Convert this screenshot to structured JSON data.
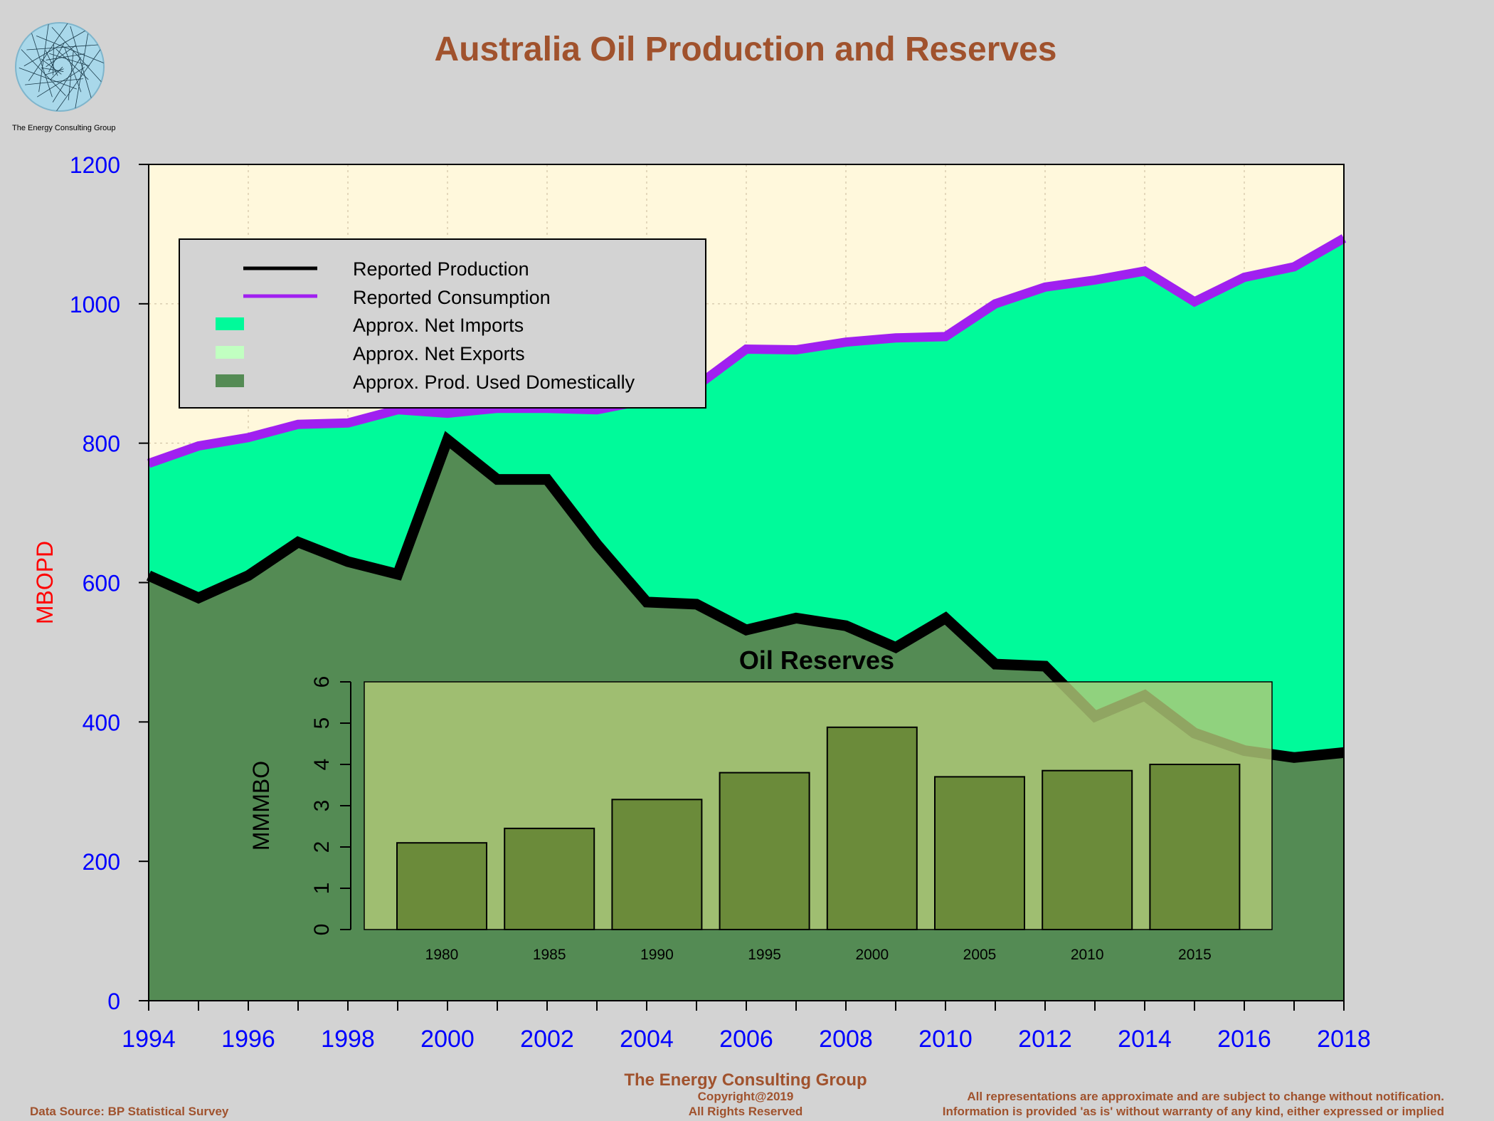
{
  "logo": {
    "caption": "The Energy Consulting Group"
  },
  "footer": {
    "source": "Data Source: BP Statistical Survey",
    "company": "The Energy Consulting Group",
    "copyright": "Copyright@2019",
    "rights": "All Rights Reserved",
    "disclaimer1": "All representations are approximate and are subject to change without notification.",
    "disclaimer2": "Information is provided 'as is' without warranty of any kind, either expressed or implied"
  },
  "colors": {
    "background": "#d3d3d3",
    "plot_background": "#fff8dc",
    "production": "#000000",
    "consumption": "#a020f0",
    "net_imports": "#00fa9a",
    "net_exports": "#c1ffc1",
    "domestic": "#548b54",
    "title": "#a0522d",
    "axis_text": "#0000ff",
    "ylabel": "#ff0000",
    "inset_bg": "#b0c978",
    "inset_bar": "#6b8b3a"
  },
  "chart_data": [
    {
      "type": "area",
      "title": "Australia Oil Production and Reserves",
      "xlabel": "",
      "ylabel": "MBOPD",
      "xlim": [
        1994,
        2018
      ],
      "ylim": [
        0,
        1200
      ],
      "x_ticks": [
        1994,
        1995,
        1996,
        1997,
        1998,
        1999,
        2000,
        2001,
        2002,
        2003,
        2004,
        2005,
        2006,
        2007,
        2008,
        2009,
        2010,
        2011,
        2012,
        2013,
        2014,
        2015,
        2016,
        2017,
        2018
      ],
      "x_tick_labels": [
        "1994",
        "1996",
        "1998",
        "2000",
        "2002",
        "2004",
        "2006",
        "2008",
        "2010",
        "2012",
        "2014",
        "2016",
        "2018"
      ],
      "y_tick_labels": [
        "0",
        "200",
        "400",
        "600",
        "800",
        "1000",
        "1200"
      ],
      "x": [
        1994,
        1995,
        1996,
        1997,
        1998,
        1999,
        2000,
        2001,
        2002,
        2003,
        2004,
        2005,
        2006,
        2007,
        2008,
        2009,
        2010,
        2011,
        2012,
        2013,
        2014,
        2015,
        2016,
        2017,
        2018
      ],
      "grid": true,
      "legend_position": "top-left",
      "series": [
        {
          "name": "Reported Production",
          "kind": "line",
          "values": [
            610,
            578,
            610,
            658,
            630,
            612,
            805,
            748,
            748,
            655,
            572,
            569,
            532,
            549,
            538,
            507,
            549,
            483,
            480,
            408,
            438,
            384,
            359,
            349,
            356
          ]
        },
        {
          "name": "Reported Consumption",
          "kind": "line",
          "values": [
            771,
            796,
            808,
            827,
            829,
            848,
            843,
            850,
            850,
            848,
            862,
            882,
            935,
            934,
            945,
            951,
            953,
            1000,
            1024,
            1034,
            1047,
            1003,
            1038,
            1053,
            1094
          ]
        },
        {
          "name": "Approx. Net Imports",
          "kind": "fill"
        },
        {
          "name": "Approx. Net Exports",
          "kind": "fill"
        },
        {
          "name": "Approx. Prod. Used Domestically",
          "kind": "fill"
        }
      ]
    },
    {
      "type": "bar",
      "title": "Oil Reserves",
      "xlabel": "",
      "ylabel": "MMMBO",
      "categories": [
        "1980",
        "1985",
        "1990",
        "1995",
        "2000",
        "2005",
        "2010",
        "2015"
      ],
      "values": [
        2.1,
        2.45,
        3.15,
        3.8,
        4.9,
        3.7,
        3.85,
        4.0
      ],
      "ylim": [
        0,
        6
      ],
      "y_tick_labels": [
        "0",
        "1",
        "2",
        "3",
        "4",
        "5",
        "6"
      ]
    }
  ]
}
